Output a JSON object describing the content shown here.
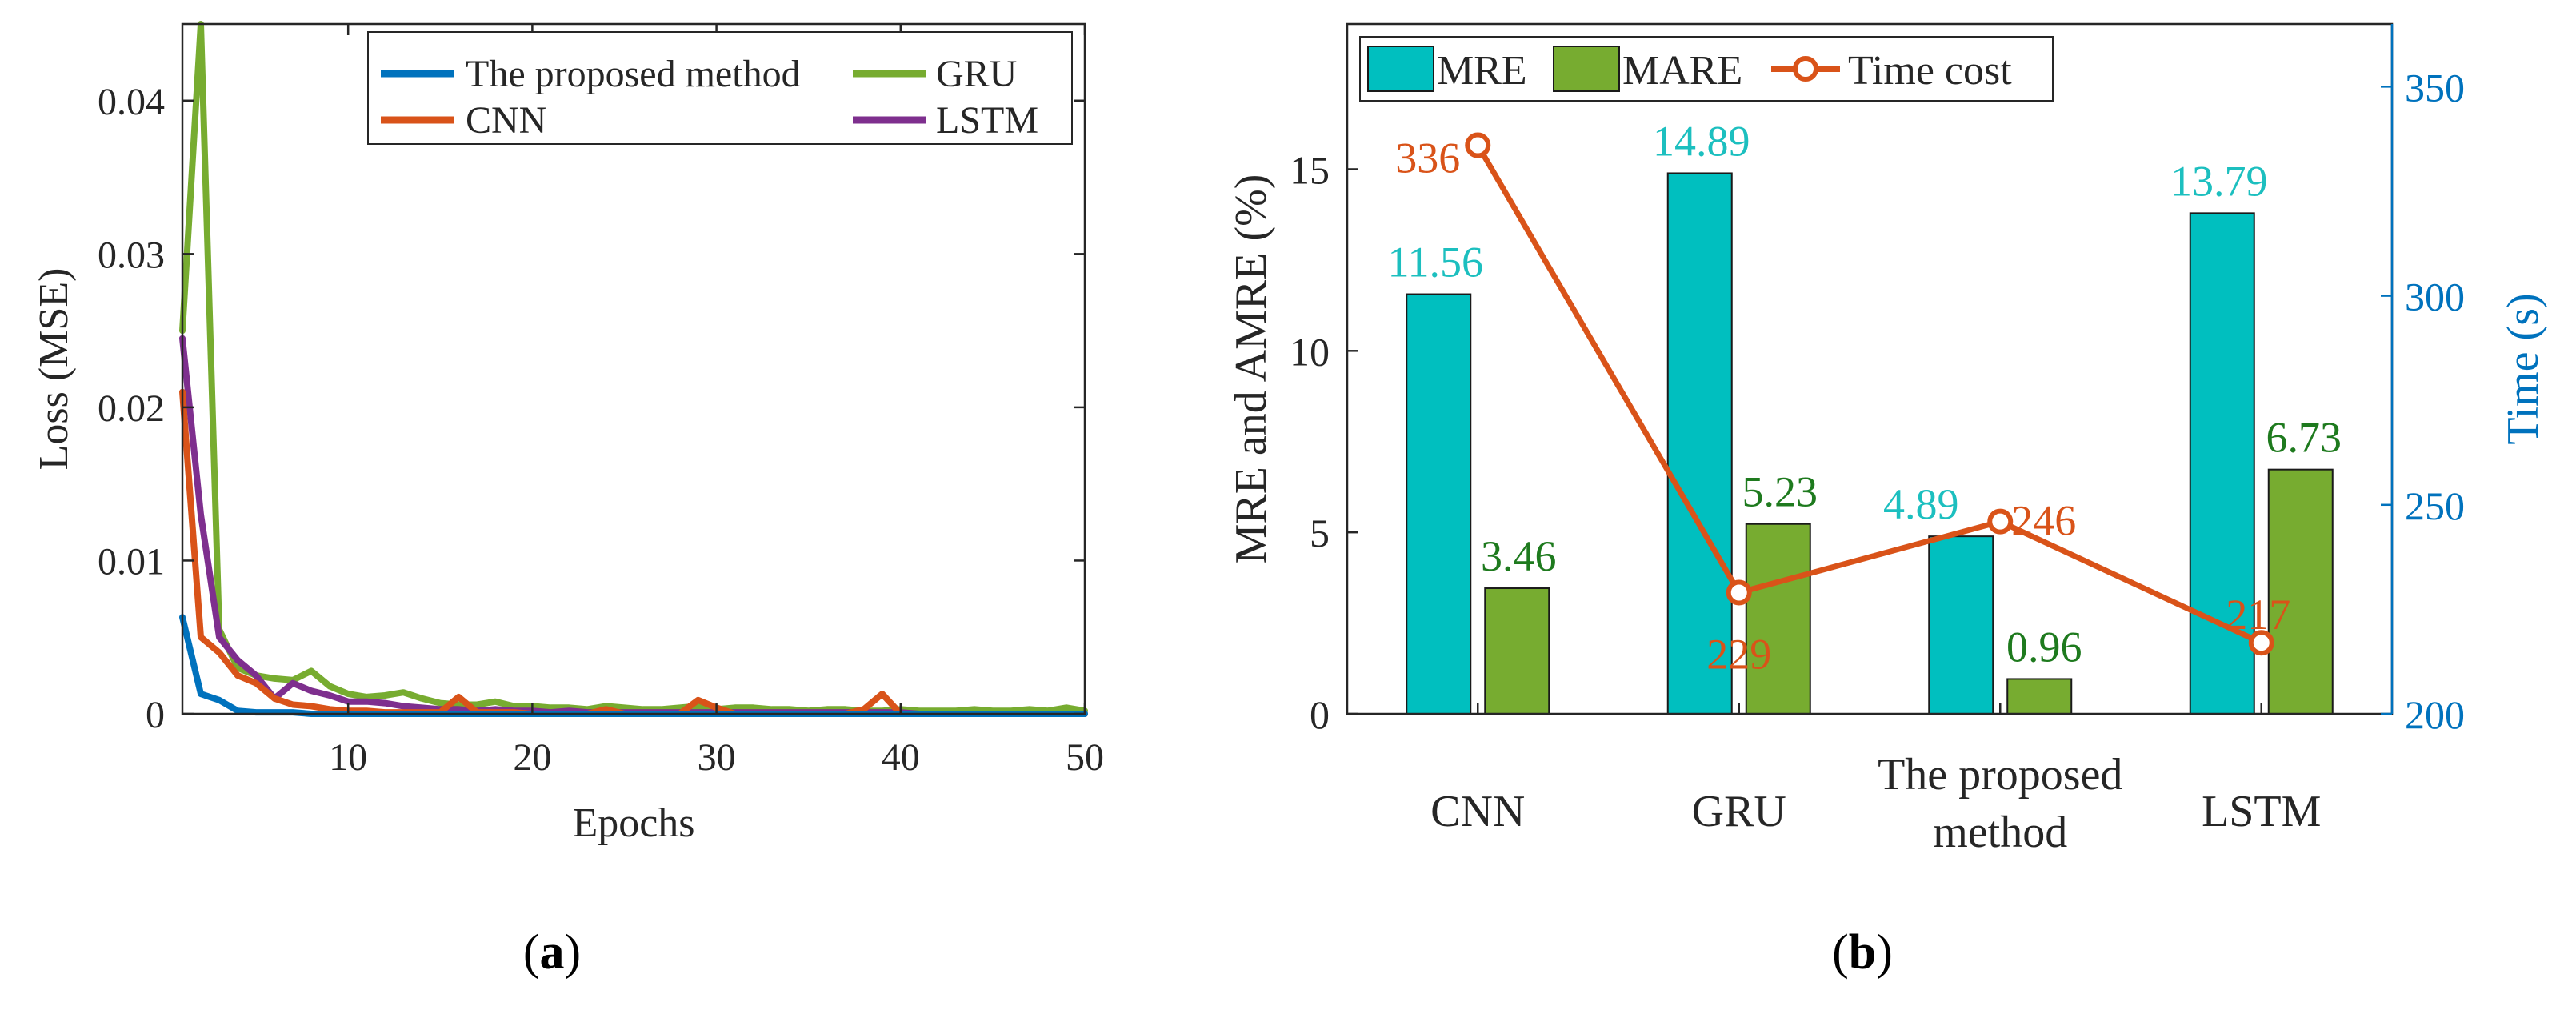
{
  "panels": {
    "a_label": "(a)",
    "b_label": "(b)"
  },
  "chart_data": [
    {
      "type": "line",
      "title": "",
      "xlabel": "Epochs",
      "ylabel": "Loss (MSE)",
      "xlim": [
        1,
        50
      ],
      "ylim": [
        0,
        0.045
      ],
      "xticks": [
        10,
        20,
        30,
        40,
        50
      ],
      "xtick_labels": [
        "10",
        "20",
        "30",
        "40",
        "50"
      ],
      "yticks": [
        0,
        0.01,
        0.02,
        0.03,
        0.04
      ],
      "ytick_labels": [
        "0",
        "0.01",
        "0.02",
        "0.03",
        "0.04"
      ],
      "legend_position": "top-right",
      "legend_order": [
        "The proposed method",
        "GRU",
        "CNN",
        "LSTM"
      ],
      "x": [
        1,
        2,
        3,
        4,
        5,
        6,
        7,
        8,
        9,
        10,
        11,
        12,
        13,
        14,
        15,
        16,
        17,
        18,
        19,
        20,
        21,
        22,
        23,
        24,
        25,
        26,
        27,
        28,
        29,
        30,
        31,
        32,
        33,
        34,
        35,
        36,
        37,
        38,
        39,
        40,
        41,
        42,
        43,
        44,
        45,
        46,
        47,
        48,
        49,
        50
      ],
      "series": [
        {
          "name": "The proposed method",
          "color": "#0072BD",
          "values": [
            0.0063,
            0.0013,
            0.0009,
            0.0002,
            0.0001,
            0.0001,
            0.0001,
            0,
            0,
            0,
            0,
            0,
            0,
            0,
            0,
            0,
            0,
            0,
            0,
            0,
            0,
            0,
            0,
            0,
            0,
            0,
            0,
            0,
            0,
            0,
            0,
            0,
            0,
            0,
            0,
            0,
            0,
            0,
            0,
            0,
            0,
            0,
            0,
            0,
            0,
            0,
            0,
            0,
            0,
            0
          ]
        },
        {
          "name": "CNN",
          "color": "#D95319",
          "values": [
            0.021,
            0.005,
            0.004,
            0.0025,
            0.002,
            0.001,
            0.0006,
            0.0005,
            0.0003,
            0.0002,
            0.0002,
            0.0001,
            0.0001,
            0.0001,
            0.0001,
            0.0011,
            0.0001,
            0.0001,
            0.0001,
            0,
            0,
            0,
            0,
            0.0003,
            0,
            0,
            0,
            0,
            0.0009,
            0.0004,
            0,
            0,
            0,
            0,
            0,
            0,
            0,
            0.0003,
            0.0013,
            0,
            0,
            0,
            0,
            0,
            0,
            0,
            0,
            0,
            0,
            0
          ]
        },
        {
          "name": "GRU",
          "color": "#77AC30",
          "values": [
            0.025,
            0.045,
            0.0055,
            0.003,
            0.0025,
            0.0023,
            0.0022,
            0.0028,
            0.0018,
            0.0013,
            0.0011,
            0.0012,
            0.0014,
            0.001,
            0.0007,
            0.0006,
            0.0006,
            0.0008,
            0.0005,
            0.0005,
            0.0004,
            0.0004,
            0.0003,
            0.0005,
            0.0004,
            0.0003,
            0.0003,
            0.0004,
            0.0005,
            0.0003,
            0.0004,
            0.0004,
            0.0003,
            0.0003,
            0.0002,
            0.0003,
            0.0003,
            0.0002,
            0.0002,
            0.0003,
            0.0002,
            0.0002,
            0.0002,
            0.0003,
            0.0002,
            0.0002,
            0.0003,
            0.0002,
            0.0004,
            0.0002
          ]
        },
        {
          "name": "LSTM",
          "color": "#7E2F8E",
          "values": [
            0.0245,
            0.013,
            0.005,
            0.0035,
            0.0025,
            0.001,
            0.002,
            0.0015,
            0.0012,
            0.0008,
            0.0008,
            0.0007,
            0.0005,
            0.0004,
            0.0003,
            0.0003,
            0.0002,
            0.0003,
            0.0002,
            0.0002,
            0.0001,
            0.0002,
            0.0001,
            0.0001,
            0.0001,
            0.0001,
            0.0001,
            0.0001,
            0.0001,
            0.0001,
            0.0001,
            0.0001,
            0.0001,
            0.0001,
            0.0001,
            0.0001,
            0.0001,
            0.0001,
            0.0001,
            0.0001,
            0,
            0,
            0,
            0,
            0,
            0,
            0,
            0,
            0,
            0
          ]
        }
      ]
    },
    {
      "type": "bar",
      "title": "",
      "categories": [
        "CNN",
        "GRU",
        "The proposed method",
        "LSTM"
      ],
      "category_label_lines": [
        [
          "CNN"
        ],
        [
          "GRU"
        ],
        [
          "The proposed",
          "method"
        ],
        [
          "LSTM"
        ]
      ],
      "ylabel": "MRE and AMRE (%)",
      "ylim": [
        0,
        19
      ],
      "yticks": [
        0,
        5,
        10,
        15
      ],
      "ytick_labels": [
        "0",
        "5",
        "10",
        "15"
      ],
      "y2label": "Time (s)",
      "y2lim": [
        200,
        365
      ],
      "y2ticks": [
        200,
        250,
        300,
        350
      ],
      "y2tick_labels": [
        "200",
        "250",
        "300",
        "350"
      ],
      "legend_position": "top",
      "series": [
        {
          "name": "MRE",
          "type": "bar",
          "color": "#00BFBF",
          "label_color": "#1CBFBF",
          "values": [
            11.56,
            14.89,
            4.89,
            13.79
          ],
          "labels": [
            "11.56",
            "14.89",
            "4.89",
            "13.79"
          ]
        },
        {
          "name": "MARE",
          "type": "bar",
          "color": "#77AC30",
          "label_color": "#1E7A1E",
          "values": [
            3.46,
            5.23,
            0.96,
            6.73
          ],
          "labels": [
            "3.46",
            "5.23",
            "0.96",
            "6.73"
          ]
        },
        {
          "name": "Time cost",
          "type": "line",
          "axis": "right",
          "color": "#D95319",
          "values": [
            336,
            229,
            246,
            217
          ],
          "labels": [
            "336",
            "229",
            "246",
            "217"
          ]
        }
      ]
    }
  ]
}
